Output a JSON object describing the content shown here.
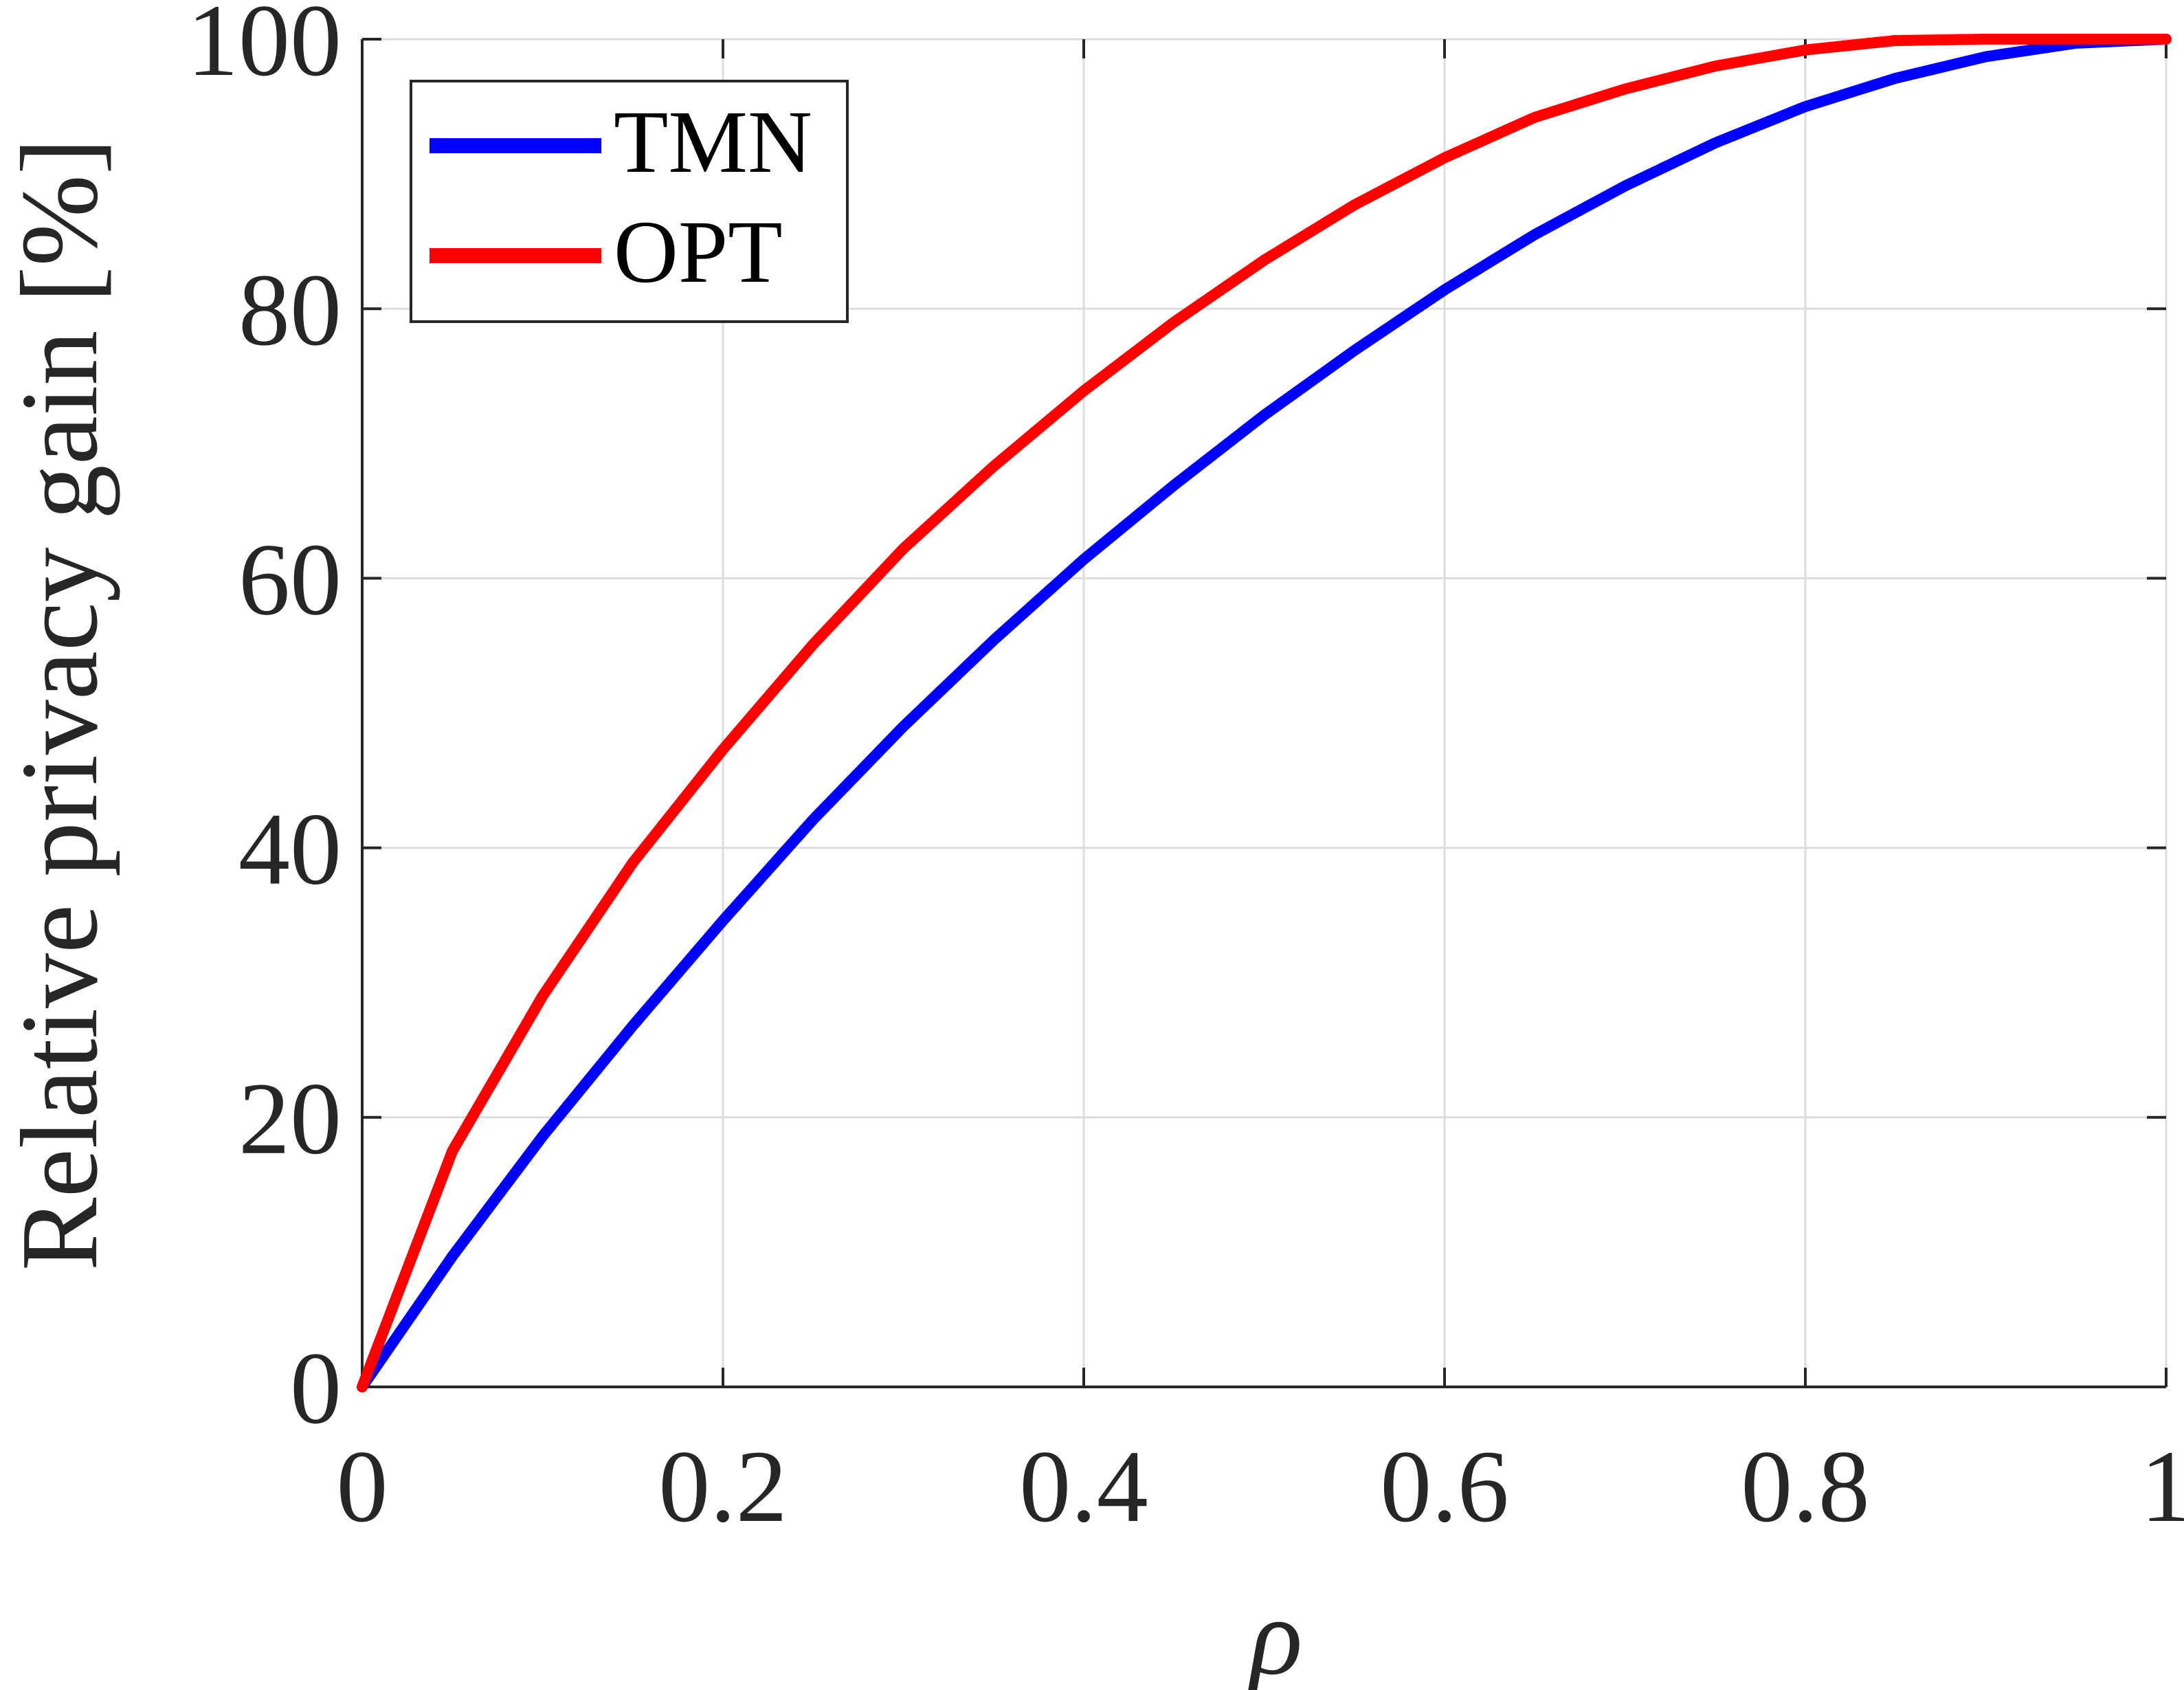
{
  "chart_data": {
    "type": "line",
    "title": "",
    "xlabel": "ρ",
    "ylabel": "Relative privacy gain [%]",
    "xlim": [
      0,
      1
    ],
    "ylim": [
      0,
      100
    ],
    "xticks": [
      0,
      0.2,
      0.4,
      0.6,
      0.8,
      1
    ],
    "xtick_labels": [
      "0",
      "0.2",
      "0.4",
      "0.6",
      "0.8",
      "1"
    ],
    "yticks": [
      0,
      20,
      40,
      60,
      80,
      100
    ],
    "ytick_labels": [
      "0",
      "20",
      "40",
      "60",
      "80",
      "100"
    ],
    "grid": true,
    "legend_position": "top-left",
    "x": [
      0,
      0.05,
      0.1,
      0.15,
      0.2,
      0.25,
      0.3,
      0.35,
      0.4,
      0.45,
      0.5,
      0.55,
      0.6,
      0.65,
      0.7,
      0.75,
      0.8,
      0.85,
      0.9,
      0.95,
      1.0
    ],
    "series": [
      {
        "name": "TMN",
        "color": "#0000ff",
        "values": [
          0,
          9.7,
          18.6,
          26.8,
          34.6,
          42.1,
          49.0,
          55.4,
          61.4,
          66.9,
          72.1,
          76.9,
          81.4,
          85.5,
          89.1,
          92.3,
          95.0,
          97.1,
          98.7,
          99.7,
          100
        ]
      },
      {
        "name": "OPT",
        "color": "#ff0000",
        "values": [
          0,
          17.5,
          29.0,
          38.9,
          47.3,
          55.1,
          62.2,
          68.3,
          73.9,
          79.0,
          83.6,
          87.7,
          91.2,
          94.2,
          96.3,
          98.0,
          99.2,
          99.9,
          100,
          100,
          100
        ]
      }
    ]
  }
}
